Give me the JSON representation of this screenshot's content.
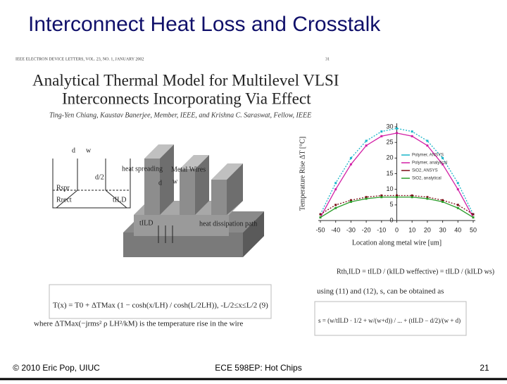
{
  "slide": {
    "title": "Interconnect Heat Loss and Crosstalk"
  },
  "paper": {
    "header": "IEEE ELECTRON DEVICE LETTERS, VOL. 23, NO. 1, JANUARY 2002",
    "page": "31",
    "title": [
      "Analytical Thermal Model for Multilevel VLSI",
      "Interconnects Incorporating Via Effect"
    ],
    "authors": "Ting-Yen Chiang, Kaustav Banerjee, Member, IEEE, and Krishna C. Saraswat, Fellow, IEEE"
  },
  "diagram": {
    "labels": [
      "d",
      "w",
      "d/2",
      "heat spreading",
      "Metal Wires",
      "Rspr",
      "Rrect",
      "tILD",
      "d",
      "w",
      "tILD",
      "heat dissipation path"
    ]
  },
  "equations": {
    "rth": "Rth,ILD = tILD / (kILD weffective) = tILD / (kILD ws)",
    "intro": "using (11) and (12), s, can be obtained as",
    "s": "s = (w/tILD · 1/2 + w/(w+d)) / ... + (tILD − d/2)/(w + d)",
    "tx": "T(x) = T0 + ΔTMax (1 − cosh(x/LH) / cosh(L/2LH)),   -L/2≤x≤L/2   (9)",
    "where": "where ΔTMax(−jrms² ρ LH²/kM) is the temperature rise in the wire"
  },
  "chart_data": {
    "type": "line",
    "xlabel": "Location along metal wire [um]",
    "ylabel": "Temperature Rise ΔT [°C]",
    "x": [
      -50,
      -40,
      -30,
      -20,
      -10,
      0,
      10,
      20,
      30,
      40,
      50
    ],
    "series": [
      {
        "name": "Polymer, ANSYS",
        "color": "#19b5c9",
        "values": [
          2,
          12,
          20,
          25.5,
          28.5,
          29.5,
          28.5,
          25.5,
          20,
          12,
          2
        ]
      },
      {
        "name": "Polymer, analytical",
        "color": "#d21fa5",
        "values": [
          1,
          10,
          18,
          24,
          27,
          28,
          27,
          24,
          18,
          10,
          1
        ]
      },
      {
        "name": "SiO2, ANSYS",
        "color": "#7a0a14",
        "values": [
          2,
          5,
          6.5,
          7.5,
          8,
          8,
          8,
          7.5,
          6.5,
          5,
          2
        ]
      },
      {
        "name": "SiO2, analytical",
        "color": "#2a9d2a",
        "values": [
          1,
          4,
          6,
          7,
          7.5,
          7.5,
          7.5,
          7,
          6,
          4,
          1
        ]
      }
    ],
    "xlim": [
      -50,
      50
    ],
    "xticks": [
      -50,
      -40,
      -30,
      -20,
      -10,
      0,
      10,
      20,
      30,
      40,
      50
    ],
    "ylim": [
      0,
      30
    ],
    "yticks": [
      0,
      5,
      10,
      15,
      20,
      25,
      30
    ],
    "grid": false
  },
  "footer": {
    "left": "© 2010 Eric Pop, UIUC",
    "center": "ECE 598EP: Hot Chips",
    "right": "21"
  }
}
